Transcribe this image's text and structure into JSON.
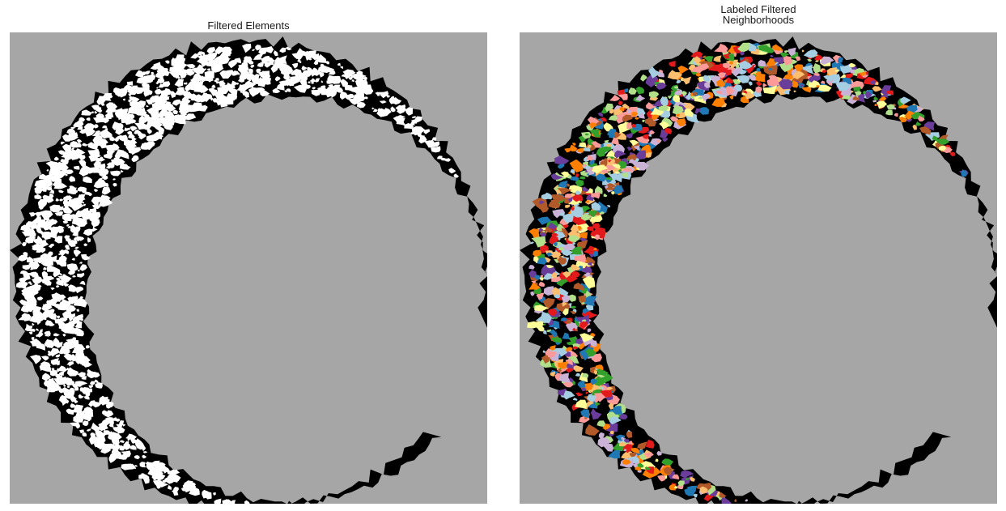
{
  "panels": [
    {
      "id": "left",
      "title": "Filtered Elements",
      "colors": {
        "background": "#a6a6a6",
        "ring": "#000000",
        "speckle": "#ffffff"
      }
    },
    {
      "id": "right",
      "title": "Labeled Filtered\nNeighborhoods",
      "colors": {
        "background": "#a6a6a6",
        "ring": "#000000",
        "labels": [
          "#e31a1c",
          "#1f78b4",
          "#33a02c",
          "#a6cee3",
          "#fb9a99",
          "#ff7f00",
          "#6a3d9a",
          "#b15928",
          "#ffff99",
          "#b2df8a",
          "#cab2d6",
          "#fdbf6f"
        ]
      }
    }
  ]
}
